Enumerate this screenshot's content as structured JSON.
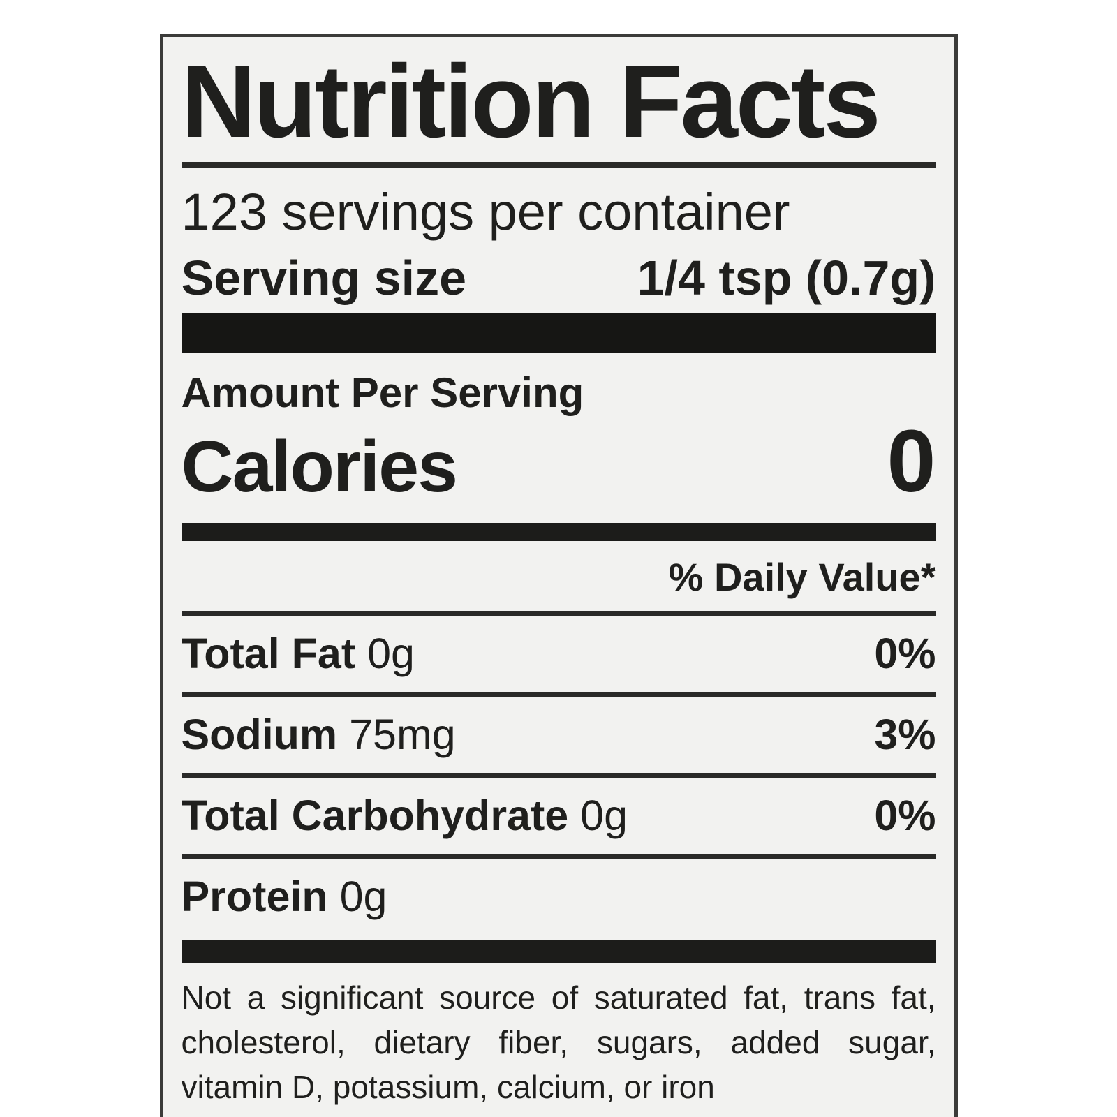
{
  "label": {
    "title": "Nutrition Facts",
    "servings_per_container": "123 servings per container",
    "serving_size": {
      "label": "Serving size",
      "value": "1/4 tsp (0.7g)"
    },
    "amount_per_serving": "Amount Per Serving",
    "calories": {
      "label": "Calories",
      "value": "0"
    },
    "daily_value_header": "% Daily Value*",
    "rows": [
      {
        "name": "Total Fat",
        "amount": "0g",
        "dv": "0%"
      },
      {
        "name": "Sodium",
        "amount": "75mg",
        "dv": "3%"
      },
      {
        "name": "Total Carbohydrate",
        "amount": "0g",
        "dv": "0%"
      },
      {
        "name": "Protein",
        "amount": "0g",
        "dv": ""
      }
    ],
    "footnote": "Not a significant source of saturated fat, trans fat, cholesterol, dietary fiber, sugars, added sugar, vitamin D, potassium, calcium, or iron",
    "colors": {
      "text": "#1f1f1d",
      "label_background": "#f2f2f0",
      "page_background": "#ffffff",
      "rule": "#2a2a28",
      "thick_bar": "#161614"
    }
  }
}
